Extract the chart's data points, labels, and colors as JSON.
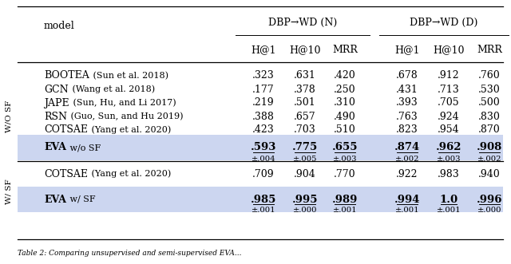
{
  "caption": "Table 2: Comparing unsupervised and semi-supervised EVA...",
  "group_header1": "DBP→WD (N)",
  "group_header2": "DBP→WD (D)",
  "subheaders": [
    "H@1",
    "H@10",
    "MRR",
    "H@1",
    "H@10",
    "MRR"
  ],
  "row_group1_label": "W/O SF",
  "row_group2_label": "W/ SF",
  "rows": [
    {
      "group": 1,
      "model_sc": "BOOTEA",
      "model_rest": " (Sun et al. 2018)",
      "values": [
        ".323",
        ".631",
        ".420",
        ".678",
        ".912",
        ".760"
      ],
      "bold": false,
      "highlight": false,
      "std": null
    },
    {
      "group": 1,
      "model_sc": "GCN",
      "model_rest": " (Wang et al. 2018)",
      "values": [
        ".177",
        ".378",
        ".250",
        ".431",
        ".713",
        ".530"
      ],
      "bold": false,
      "highlight": false,
      "std": null
    },
    {
      "group": 1,
      "model_sc": "JAPE",
      "model_rest": " (Sun, Hu, and Li 2017)",
      "values": [
        ".219",
        ".501",
        ".310",
        ".393",
        ".705",
        ".500"
      ],
      "bold": false,
      "highlight": false,
      "std": null
    },
    {
      "group": 1,
      "model_sc": "RSN",
      "model_rest": " (Guo, Sun, and Hu 2019)",
      "values": [
        ".388",
        ".657",
        ".490",
        ".763",
        ".924",
        ".830"
      ],
      "bold": false,
      "highlight": false,
      "std": null
    },
    {
      "group": 1,
      "model_sc": "COTSAE",
      "model_rest": " (Yang et al. 2020)",
      "values": [
        ".423",
        ".703",
        ".510",
        ".823",
        ".954",
        ".870"
      ],
      "bold": false,
      "highlight": false,
      "std": null
    },
    {
      "group": 1,
      "model_eva": "EVA",
      "model_rest": " w/o SF",
      "values": [
        ".593",
        ".775",
        ".655",
        ".874",
        ".962",
        ".908"
      ],
      "bold": true,
      "highlight": true,
      "std": [
        "±.004",
        "±.005",
        "±.003",
        "±.002",
        "±.003",
        "±.002"
      ]
    },
    {
      "group": 2,
      "model_sc": "COTSAE",
      "model_rest": " (Yang et al. 2020)",
      "values": [
        ".709",
        ".904",
        ".770",
        ".922",
        ".983",
        ".940"
      ],
      "bold": false,
      "highlight": false,
      "std": null
    },
    {
      "group": 2,
      "model_eva": "EVA",
      "model_rest": " w/ SF",
      "values": [
        ".985",
        ".995",
        ".989",
        ".994",
        "1.0",
        ".996"
      ],
      "bold": true,
      "highlight": true,
      "std": [
        "±.001",
        "±.000",
        "±.001",
        "±.001",
        "±.001",
        "±.000"
      ]
    }
  ],
  "highlight_color": "#ccd6f0",
  "bg_color": "#ffffff",
  "fs": 9.0,
  "fs_small": 7.2,
  "fs_side": 7.5
}
